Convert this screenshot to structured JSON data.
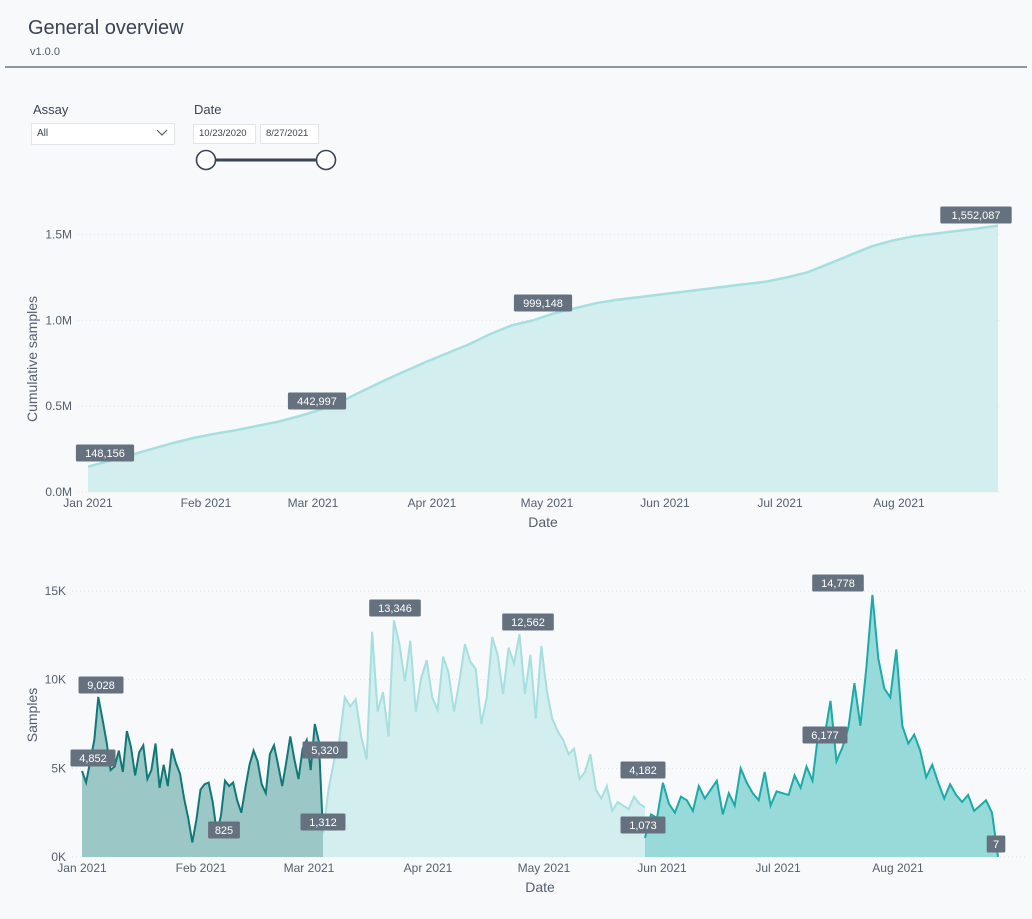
{
  "header": {
    "title": "General overview",
    "version": "v1.0.0"
  },
  "filters": {
    "assay": {
      "label": "Assay",
      "value": "All"
    },
    "date": {
      "label": "Date",
      "start": "10/23/2020",
      "end": "8/27/2021"
    }
  },
  "colors": {
    "teal_light": "#a5dfdf",
    "teal_fill": "#d3eeee",
    "teal_dark": "#117878",
    "teal_mid": "#1aaba8",
    "label_bg": "#66717f"
  },
  "chart_data": [
    {
      "type": "area",
      "xlabel": "Date",
      "ylabel": "Cumulative samples",
      "x_ticks": [
        "Jan 2021",
        "Feb 2021",
        "Mar 2021",
        "Apr 2021",
        "May 2021",
        "Jun 2021",
        "Jul 2021",
        "Aug 2021"
      ],
      "y_ticks": [
        "0.0M",
        "0.5M",
        "1.0M",
        "1.5M"
      ],
      "ylim": [
        0,
        1550000
      ],
      "grid": "horizontal dotted",
      "series": [
        {
          "values": [
            148156,
            180000,
            215000,
            250000,
            285000,
            315000,
            340000,
            360000,
            385000,
            410000,
            442997,
            480000,
            530000,
            590000,
            650000,
            705000,
            760000,
            810000,
            860000,
            920000,
            970000,
            999148,
            1040000,
            1070000,
            1100000,
            1120000,
            1135000,
            1150000,
            1165000,
            1180000,
            1195000,
            1210000,
            1225000,
            1250000,
            1280000,
            1330000,
            1380000,
            1430000,
            1465000,
            1490000,
            1505000,
            1520000,
            1535000,
            1552087
          ]
        }
      ],
      "data_labels": [
        {
          "text": "148,156",
          "value": 148156
        },
        {
          "text": "442,997",
          "value": 442997
        },
        {
          "text": "999,148",
          "value": 999148
        },
        {
          "text": "1,552,087",
          "value": 1552087
        }
      ]
    },
    {
      "type": "area",
      "xlabel": "Date",
      "ylabel": "Samples",
      "x_ticks": [
        "Jan 2021",
        "Feb 2021",
        "Mar 2021",
        "Apr 2021",
        "May 2021",
        "Jun 2021",
        "Jul 2021",
        "Aug 2021"
      ],
      "y_ticks": [
        "0K",
        "5K",
        "10K",
        "15K"
      ],
      "ylim": [
        0,
        15000
      ],
      "grid": "horizontal dotted",
      "series": [
        {
          "values": [
            4852,
            4200,
            5400,
            6600,
            9028,
            7800,
            6500,
            4900,
            5100,
            6000,
            4800,
            7100,
            6200,
            4600,
            5900,
            6300,
            4400,
            4900,
            6400,
            3900,
            5200,
            4000,
            6100,
            5300,
            4700,
            3300,
            2200,
            825,
            2100,
            3800,
            4100,
            4200,
            3100,
            1400,
            2300,
            4300,
            4000,
            4200,
            3200,
            2500,
            3900,
            5200,
            6000,
            5400,
            4100,
            3600,
            5800,
            6300,
            5200,
            4000,
            5320,
            6800,
            5500,
            4400,
            6100,
            6600,
            4900,
            7500,
            6500,
            1312
          ]
        },
        {
          "values": [
            1312,
            3800,
            5400,
            6600,
            9000,
            8500,
            8900,
            6800,
            5500,
            12700,
            8200,
            9300,
            6800,
            13346,
            12000,
            9900,
            12200,
            8200,
            10100,
            11100,
            9000,
            8300,
            11300,
            10400,
            8200,
            9900,
            12000,
            11000,
            10600,
            7500,
            9000,
            12400,
            11400,
            9200,
            11800,
            10900,
            12562,
            9200,
            11400,
            7800,
            11900,
            9400,
            7800,
            7100,
            6600,
            5800,
            6100,
            4400,
            4800,
            5800,
            3800,
            3300,
            4000,
            2600,
            3100,
            2900,
            2700,
            3400,
            3000,
            2800
          ]
        },
        {
          "values": [
            1073,
            2400,
            2200,
            4182,
            3000,
            2500,
            3400,
            3200,
            2600,
            4000,
            3300,
            3800,
            4300,
            2400,
            3600,
            2900,
            5000,
            4200,
            3600,
            3200,
            4800,
            2900,
            3700,
            3600,
            3500,
            4600,
            3900,
            5100,
            4300,
            7100,
            6800,
            8800,
            5400,
            6177,
            7300,
            9800,
            7400,
            10700,
            14778,
            11200,
            9500,
            9000,
            11700,
            7400,
            6400,
            6900,
            6000,
            4500,
            5200,
            4200,
            3300,
            4100,
            3500,
            3100,
            3500,
            2600,
            2900,
            3200,
            2500,
            7
          ]
        }
      ],
      "data_labels": [
        {
          "text": "4,852",
          "value": 4852
        },
        {
          "text": "9,028",
          "value": 9028
        },
        {
          "text": "825",
          "value": 825
        },
        {
          "text": "5,320",
          "value": 5320
        },
        {
          "text": "1,312",
          "value": 1312
        },
        {
          "text": "13,346",
          "value": 13346
        },
        {
          "text": "12,562",
          "value": 12562
        },
        {
          "text": "4,182",
          "value": 4182
        },
        {
          "text": "1,073",
          "value": 1073
        },
        {
          "text": "6,177",
          "value": 6177
        },
        {
          "text": "14,778",
          "value": 14778
        },
        {
          "text": "7",
          "value": 7
        }
      ]
    }
  ]
}
